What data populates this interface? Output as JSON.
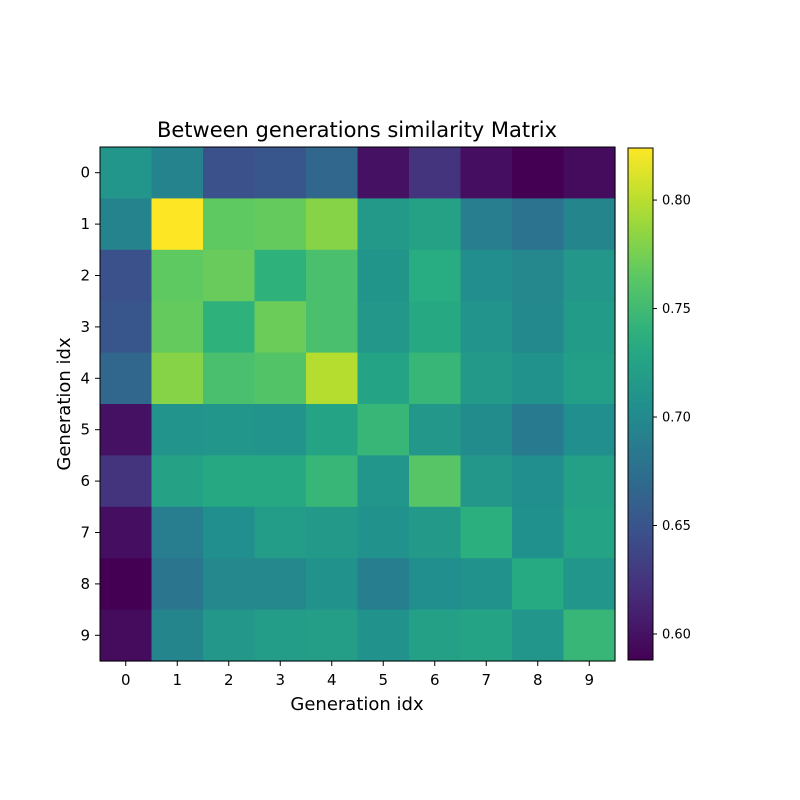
{
  "chart_data": {
    "type": "heatmap",
    "title": "Between generations similarity Matrix",
    "xlabel": "Generation idx",
    "ylabel": "Generation idx",
    "x_categories": [
      "0",
      "1",
      "2",
      "3",
      "4",
      "5",
      "6",
      "7",
      "8",
      "9"
    ],
    "y_categories": [
      "0",
      "1",
      "2",
      "3",
      "4",
      "5",
      "6",
      "7",
      "8",
      "9"
    ],
    "colormap": "viridis",
    "vmin": 0.588,
    "vmax": 0.824,
    "colorbar_ticks": [
      "0.60",
      "0.65",
      "0.70",
      "0.75",
      "0.80"
    ],
    "colorbar_tick_values": [
      0.6,
      0.65,
      0.7,
      0.75,
      0.8
    ],
    "values": [
      [
        0.712,
        0.694,
        0.647,
        0.652,
        0.667,
        0.6,
        0.624,
        0.597,
        0.588,
        0.595
      ],
      [
        0.694,
        0.824,
        0.766,
        0.768,
        0.781,
        0.715,
        0.724,
        0.688,
        0.678,
        0.696
      ],
      [
        0.647,
        0.766,
        0.77,
        0.74,
        0.755,
        0.711,
        0.735,
        0.704,
        0.698,
        0.713
      ],
      [
        0.652,
        0.768,
        0.74,
        0.771,
        0.755,
        0.713,
        0.731,
        0.71,
        0.699,
        0.717
      ],
      [
        0.667,
        0.781,
        0.755,
        0.76,
        0.798,
        0.725,
        0.745,
        0.715,
        0.708,
        0.721
      ],
      [
        0.6,
        0.71,
        0.712,
        0.71,
        0.725,
        0.745,
        0.713,
        0.702,
        0.686,
        0.705
      ],
      [
        0.624,
        0.724,
        0.73,
        0.73,
        0.745,
        0.712,
        0.762,
        0.713,
        0.705,
        0.722
      ],
      [
        0.597,
        0.688,
        0.705,
        0.718,
        0.715,
        0.708,
        0.715,
        0.738,
        0.707,
        0.725
      ],
      [
        0.588,
        0.68,
        0.698,
        0.698,
        0.708,
        0.689,
        0.705,
        0.708,
        0.732,
        0.712
      ],
      [
        0.595,
        0.696,
        0.713,
        0.718,
        0.72,
        0.708,
        0.722,
        0.725,
        0.712,
        0.745
      ]
    ]
  }
}
